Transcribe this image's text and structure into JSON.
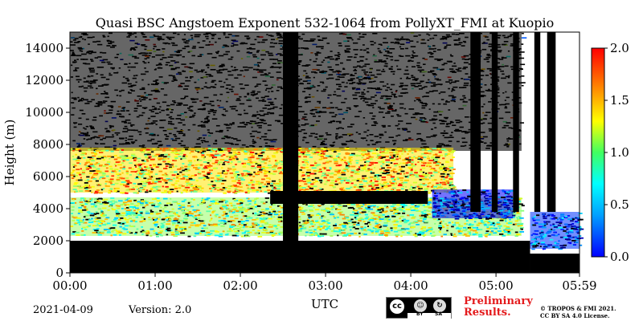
{
  "chart_data": {
    "type": "heatmap",
    "title": "Quasi BSC Angstoem Exponent 532-1064 from PollyXT_FMI at Kuopio",
    "xlabel": "UTC",
    "ylabel": "Height (m)",
    "x_ticks": [
      "00:00",
      "01:00",
      "02:00",
      "03:00",
      "04:00",
      "05:00",
      "05:59"
    ],
    "y_ticks": [
      "0",
      "2000",
      "4000",
      "6000",
      "8000",
      "10000",
      "12000",
      "14000"
    ],
    "xlim_hours": [
      0,
      5.98
    ],
    "ylim_m": [
      0,
      15000
    ],
    "colorbar": {
      "range": [
        0.0,
        2.0
      ],
      "tick_labels": [
        "0.0",
        "0.5",
        "1.0",
        "1.5",
        "2.0"
      ],
      "colormap": "jet"
    },
    "features": [
      {
        "name": "aerosol-layer-upper",
        "t_start": 0.0,
        "t_end": 4.5,
        "h_bottom": 5000,
        "h_top": 7800,
        "value": 1.3
      },
      {
        "name": "aerosol-layer-lower",
        "t_start": 0.0,
        "t_end": 5.3,
        "h_bottom": 2300,
        "h_top": 4700,
        "value": 1.05
      },
      {
        "name": "retrieval-gap",
        "t_start": 2.5,
        "t_end": 2.68,
        "h_bottom": 200,
        "h_top": 15000,
        "value": null
      },
      {
        "name": "cloud-layer",
        "t_start": 2.35,
        "t_end": 4.2,
        "h_bottom": 4300,
        "h_top": 5100,
        "value": null
      },
      {
        "name": "low-angstrom-layer",
        "t_start": 4.25,
        "t_end": 5.2,
        "h_bottom": 3400,
        "h_top": 5200,
        "value": 0.25
      },
      {
        "name": "boundary-layer",
        "t_start": 5.4,
        "t_end": 5.98,
        "h_bottom": 1500,
        "h_top": 3800,
        "value": 0.35
      }
    ],
    "grid": false
  },
  "footer": {
    "date": "2021-04-09",
    "version": "Version: 2.0",
    "preliminary": [
      "Preliminary",
      "Results."
    ],
    "copyright": [
      "© TROPOS & FMI 2021.",
      "CC BY SA 4.0 License."
    ],
    "license_badge": {
      "cc": "cc",
      "by": "BY",
      "sa": "SA"
    }
  }
}
